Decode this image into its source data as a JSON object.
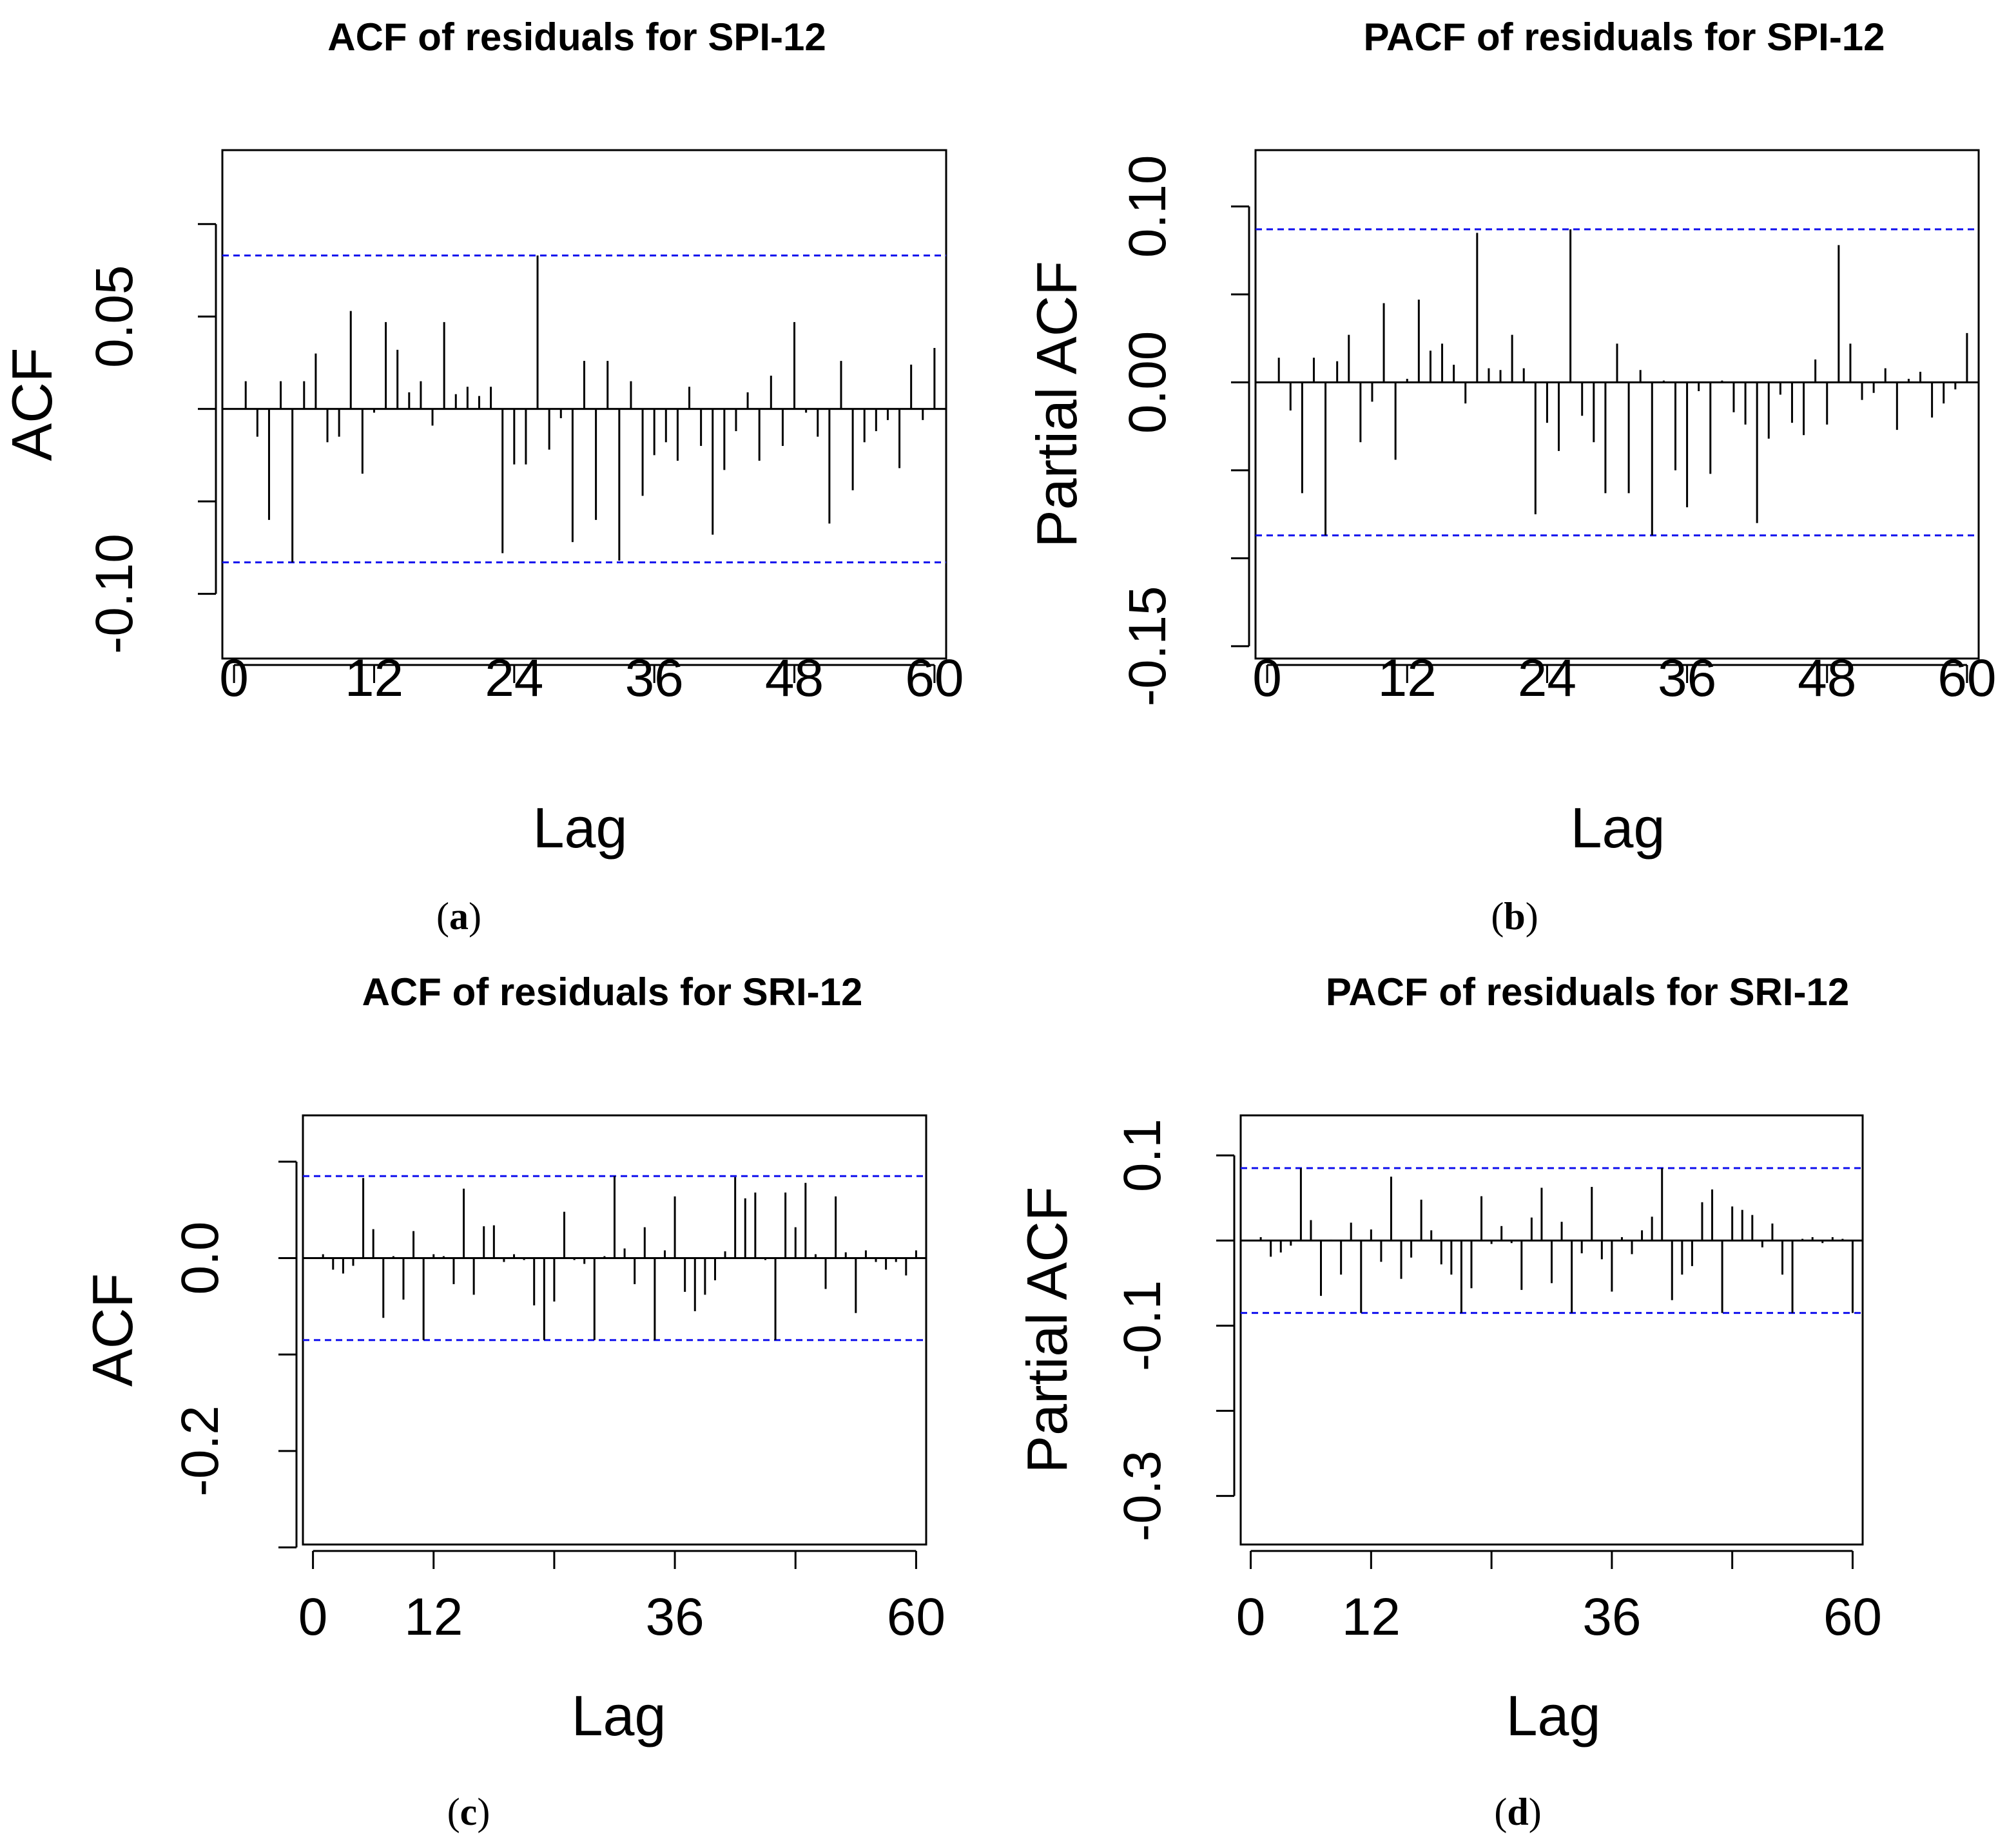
{
  "figure": {
    "panels": [
      "a",
      "b",
      "c",
      "d"
    ]
  },
  "chart_data": [
    {
      "type": "bar",
      "panel_caption": "a",
      "title": "ACF of residuals for SPI-12",
      "xlabel": "Lag",
      "ylabel": "ACF",
      "xlim": [
        -1,
        61
      ],
      "ylim": [
        -0.135,
        0.14
      ],
      "xticks": [
        0,
        12,
        24,
        36,
        48,
        60
      ],
      "xtick_labels": [
        "0",
        "12",
        "24",
        "36",
        "48",
        "60"
      ],
      "yticks": [
        -0.1,
        0.05
      ],
      "ytick_labels": [
        "-0.10",
        "0.05"
      ],
      "ytick_marks": [
        -0.1,
        -0.05,
        0.0,
        0.05,
        0.1
      ],
      "confidence_band": [
        -0.083,
        0.083
      ],
      "lags": [
        1,
        2,
        3,
        4,
        5,
        6,
        7,
        8,
        9,
        10,
        11,
        12,
        13,
        14,
        15,
        16,
        17,
        18,
        19,
        20,
        21,
        22,
        23,
        24,
        25,
        26,
        27,
        28,
        29,
        30,
        31,
        32,
        33,
        34,
        35,
        36,
        37,
        38,
        39,
        40,
        41,
        42,
        43,
        44,
        45,
        46,
        47,
        48,
        49,
        50,
        51,
        52,
        53,
        54,
        55,
        56,
        57,
        58,
        59,
        60
      ],
      "values": [
        0.015,
        -0.015,
        -0.06,
        0.015,
        -0.083,
        0.015,
        0.03,
        -0.018,
        -0.015,
        0.053,
        -0.035,
        -0.002,
        0.047,
        0.032,
        0.009,
        0.015,
        -0.009,
        0.047,
        0.008,
        0.012,
        0.007,
        0.012,
        -0.078,
        -0.03,
        -0.03,
        0.083,
        -0.022,
        -0.005,
        -0.072,
        0.026,
        -0.06,
        0.026,
        -0.082,
        0.015,
        -0.047,
        -0.025,
        -0.018,
        -0.028,
        0.012,
        -0.02,
        -0.068,
        -0.033,
        -0.012,
        0.009,
        -0.028,
        0.018,
        -0.02,
        0.047,
        -0.002,
        -0.015,
        -0.062,
        0.026,
        -0.044,
        -0.018,
        -0.012,
        -0.006,
        -0.032,
        0.024,
        -0.006,
        0.033
      ]
    },
    {
      "type": "bar",
      "panel_caption": "b",
      "title": "PACF of residuals for SPI-12",
      "xlabel": "Lag",
      "ylabel": "Partial ACF",
      "xlim": [
        -1,
        61
      ],
      "ylim": [
        -0.157,
        0.132
      ],
      "xticks": [
        0,
        12,
        24,
        36,
        48,
        60
      ],
      "xtick_labels": [
        "0",
        "12",
        "24",
        "36",
        "48",
        "60"
      ],
      "yticks": [
        -0.15,
        0.0,
        0.1
      ],
      "ytick_labels": [
        "-0.15",
        "0.00",
        "0.10"
      ],
      "ytick_marks": [
        -0.15,
        -0.1,
        -0.05,
        0.0,
        0.05,
        0.1
      ],
      "confidence_band": [
        -0.087,
        0.087
      ],
      "lags": [
        1,
        2,
        3,
        4,
        5,
        6,
        7,
        8,
        9,
        10,
        11,
        12,
        13,
        14,
        15,
        16,
        17,
        18,
        19,
        20,
        21,
        22,
        23,
        24,
        25,
        26,
        27,
        28,
        29,
        30,
        31,
        32,
        33,
        34,
        35,
        36,
        37,
        38,
        39,
        40,
        41,
        42,
        43,
        44,
        45,
        46,
        47,
        48,
        49,
        50,
        51,
        52,
        53,
        54,
        55,
        56,
        57,
        58,
        59,
        60
      ],
      "values": [
        0.014,
        -0.016,
        -0.063,
        0.014,
        -0.087,
        0.012,
        0.027,
        -0.034,
        -0.011,
        0.045,
        -0.044,
        0.002,
        0.047,
        0.018,
        0.022,
        0.01,
        -0.012,
        0.085,
        0.008,
        0.007,
        0.027,
        0.008,
        -0.075,
        -0.023,
        -0.039,
        0.087,
        -0.019,
        -0.034,
        -0.063,
        0.022,
        -0.063,
        0.007,
        -0.087,
        0.001,
        -0.05,
        -0.071,
        -0.005,
        -0.052,
        0.001,
        -0.017,
        -0.024,
        -0.08,
        -0.032,
        -0.007,
        -0.023,
        -0.03,
        0.013,
        -0.024,
        0.078,
        0.022,
        -0.01,
        -0.006,
        0.008,
        -0.027,
        0.002,
        0.006,
        -0.02,
        -0.012,
        -0.004,
        0.028
      ]
    },
    {
      "type": "bar",
      "panel_caption": "c",
      "title": "ACF of residuals for SRI-12",
      "xlabel": "Lag",
      "ylabel": "ACF",
      "xlim": [
        -1,
        61
      ],
      "ylim": [
        -0.297,
        0.148
      ],
      "xticks": [
        0,
        12,
        24,
        36,
        48,
        60
      ],
      "xtick_labels": [
        "0",
        "12",
        "",
        "36",
        "",
        "60"
      ],
      "yticks": [
        -0.2,
        0.0
      ],
      "ytick_labels": [
        "-0.2",
        "0.0"
      ],
      "ytick_marks": [
        -0.3,
        -0.2,
        -0.1,
        0.0,
        0.1
      ],
      "confidence_band": [
        -0.085,
        0.085
      ],
      "lags": [
        1,
        2,
        3,
        4,
        5,
        6,
        7,
        8,
        9,
        10,
        11,
        12,
        13,
        14,
        15,
        16,
        17,
        18,
        19,
        20,
        21,
        22,
        23,
        24,
        25,
        26,
        27,
        28,
        29,
        30,
        31,
        32,
        33,
        34,
        35,
        36,
        37,
        38,
        39,
        40,
        41,
        42,
        43,
        44,
        45,
        46,
        47,
        48,
        49,
        50,
        51,
        52,
        53,
        54,
        55,
        56,
        57,
        58,
        59,
        60
      ],
      "values": [
        0.004,
        -0.012,
        -0.016,
        -0.008,
        0.083,
        0.03,
        -0.062,
        0.002,
        -0.043,
        0.028,
        -0.085,
        0.004,
        0.002,
        -0.027,
        0.072,
        -0.038,
        0.033,
        0.034,
        -0.004,
        0.004,
        -0.002,
        -0.049,
        -0.085,
        -0.045,
        0.048,
        -0.002,
        -0.006,
        -0.085,
        0.002,
        0.085,
        0.01,
        -0.027,
        0.032,
        -0.085,
        0.008,
        0.064,
        -0.035,
        -0.055,
        -0.038,
        -0.023,
        0.007,
        0.084,
        0.062,
        0.068,
        -0.002,
        -0.085,
        0.068,
        0.032,
        0.078,
        0.004,
        -0.032,
        0.064,
        0.006,
        -0.057,
        0.008,
        -0.004,
        -0.012,
        -0.004,
        -0.018,
        0.008
      ]
    },
    {
      "type": "bar",
      "panel_caption": "d",
      "title": "PACF of residuals for SRI-12",
      "xlabel": "Lag",
      "ylabel": "Partial ACF",
      "xlim": [
        -1,
        61
      ],
      "ylim": [
        -0.357,
        0.147
      ],
      "xticks": [
        0,
        12,
        24,
        36,
        48,
        60
      ],
      "xtick_labels": [
        "0",
        "12",
        "",
        "36",
        "",
        "60"
      ],
      "yticks": [
        -0.3,
        -0.1,
        0.1
      ],
      "ytick_labels": [
        "-0.3",
        "-0.1",
        "0.1"
      ],
      "ytick_marks": [
        -0.3,
        -0.2,
        -0.1,
        0.0,
        0.1
      ],
      "confidence_band": [
        -0.085,
        0.085
      ],
      "lags": [
        1,
        2,
        3,
        4,
        5,
        6,
        7,
        8,
        9,
        10,
        11,
        12,
        13,
        14,
        15,
        16,
        17,
        18,
        19,
        20,
        21,
        22,
        23,
        24,
        25,
        26,
        27,
        28,
        29,
        30,
        31,
        32,
        33,
        34,
        35,
        36,
        37,
        38,
        39,
        40,
        41,
        42,
        43,
        44,
        45,
        46,
        47,
        48,
        49,
        50,
        51,
        52,
        53,
        54,
        55,
        56,
        57,
        58,
        59,
        60
      ],
      "values": [
        0.004,
        -0.019,
        -0.014,
        -0.006,
        0.085,
        0.024,
        -0.065,
        0.001,
        -0.04,
        0.021,
        -0.085,
        0.013,
        -0.025,
        0.075,
        -0.045,
        -0.02,
        0.048,
        0.012,
        -0.028,
        -0.04,
        -0.085,
        -0.056,
        0.052,
        -0.004,
        0.017,
        -0.003,
        -0.058,
        0.027,
        0.062,
        -0.05,
        0.022,
        -0.085,
        -0.015,
        0.063,
        -0.022,
        -0.06,
        0.004,
        -0.016,
        0.012,
        0.028,
        0.085,
        -0.07,
        -0.04,
        -0.03,
        0.045,
        0.06,
        -0.085,
        0.04,
        0.036,
        0.03,
        -0.008,
        0.02,
        -0.04,
        -0.085,
        0.002,
        0.004,
        -0.003,
        0.004,
        0.002,
        -0.085
      ]
    }
  ]
}
